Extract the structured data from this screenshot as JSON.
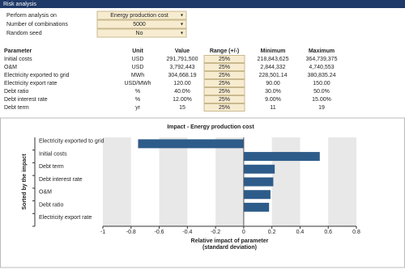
{
  "header": {
    "title": "Risk analysis"
  },
  "settings": [
    {
      "label": "Perform analysis on",
      "value": "Energy production cost"
    },
    {
      "label": "Number of combinations",
      "value": "5000"
    },
    {
      "label": "Random seed",
      "value": "No"
    }
  ],
  "table": {
    "columns": [
      "Parameter",
      "Unit",
      "Value",
      "Range (+/-)",
      "Minimum",
      "Maximum"
    ],
    "rows": [
      [
        "Initial costs",
        "USD",
        "291,791,500",
        "25%",
        "218,843,625",
        "364,739,375"
      ],
      [
        "O&M",
        "USD",
        "3,792,443",
        "25%",
        "2,844,332",
        "4,740,553"
      ],
      [
        "Electricity exported to grid",
        "MWh",
        "304,668.19",
        "25%",
        "228,501.14",
        "380,835.24"
      ],
      [
        "Electricity export rate",
        "USD/MWh",
        "120.00",
        "25%",
        "90.00",
        "150.00"
      ],
      [
        "Debt ratio",
        "%",
        "40.0%",
        "25%",
        "30.0%",
        "50.0%"
      ],
      [
        "Debt interest rate",
        "%",
        "12.00%",
        "25%",
        "9.00%",
        "15.00%"
      ],
      [
        "Debt term",
        "yr",
        "15",
        "25%",
        "11",
        "19"
      ]
    ]
  },
  "chart_data": {
    "type": "barh",
    "title": "Impact - Energy production cost",
    "ylabel": "Sorted by the impact",
    "xlabel": [
      "Relative impact of parameter",
      "(standard deviation)"
    ],
    "categories": [
      "Electricity exported to grid",
      "Initial costs",
      "Debt term",
      "Debt interest rate",
      "O&M",
      "Debt ratio",
      "Electricity export rate"
    ],
    "values": [
      -0.75,
      0.54,
      0.22,
      0.21,
      0.19,
      0.18,
      0
    ],
    "color": "#2e5c8a",
    "xlim": [
      -1,
      0.8
    ],
    "xticks": [
      -1,
      -0.8,
      -0.6,
      -0.4,
      -0.2,
      0,
      0.2,
      0.4,
      0.6,
      0.8
    ]
  }
}
